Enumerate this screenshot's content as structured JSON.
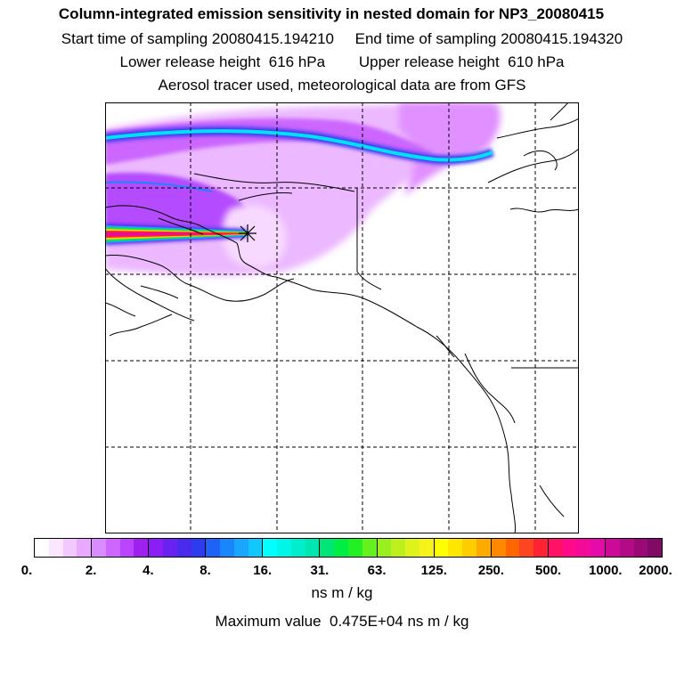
{
  "header": {
    "title": "Column-integrated emission sensitivity in nested domain for NP3_20080415",
    "sampling": "Start time of sampling 20080415.194210     End time of sampling 20080415.194320",
    "release": "Lower release height  616 hPa        Upper release height  610 hPa",
    "tracer": "Aerosol tracer used, meteorological data are from GFS"
  },
  "colorbar": {
    "tick_labels": [
      "0.",
      "2.",
      "4.",
      "8.",
      "16.",
      "31.",
      "63.",
      "125.",
      "250.",
      "500.",
      "1000.",
      "2000."
    ],
    "units": "ns m / kg",
    "segments": [
      [
        "#ffffff",
        "#fbe6ff",
        "#f2c8ff",
        "#e8aaff"
      ],
      [
        "#d98cff",
        "#cc66ff",
        "#bb44ff",
        "#a020f0"
      ],
      [
        "#8a1ef5",
        "#6a22f2",
        "#4a2aef",
        "#2e3cf0"
      ],
      [
        "#1e62f6",
        "#1a86fb",
        "#18a6ff",
        "#12c6ff"
      ],
      [
        "#00ffff",
        "#00f6e6",
        "#00eecc",
        "#00e6b2"
      ],
      [
        "#00e676",
        "#00ee44",
        "#22f022",
        "#66f01e"
      ],
      [
        "#99f01e",
        "#bff01e",
        "#dff21c",
        "#f6f21a"
      ],
      [
        "#ffff00",
        "#ffe600",
        "#ffcc00",
        "#ffaa00"
      ],
      [
        "#ff8800",
        "#ff6600",
        "#ff4422",
        "#ff2233"
      ],
      [
        "#ff1166",
        "#ff0a88",
        "#f30a99",
        "#e60aaa"
      ],
      [
        "#cc0a99",
        "#b30a88",
        "#990a77",
        "#800a66"
      ]
    ]
  },
  "max_value": "Maximum value  0.475E+04 ns m / kg",
  "map": {
    "release_marker": "asterisk-star",
    "coastline_color": "#000000"
  }
}
